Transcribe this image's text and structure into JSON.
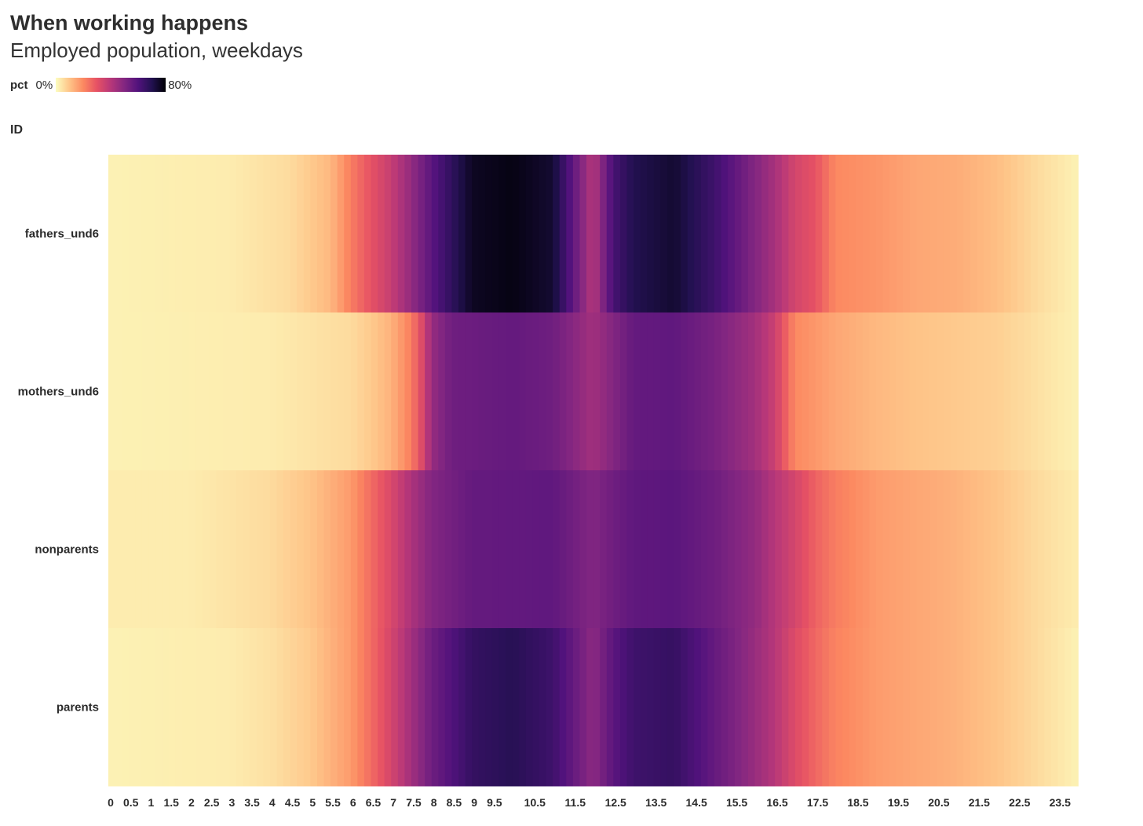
{
  "header": {
    "title": "When working happens",
    "subtitle": "Employed population, weekdays"
  },
  "legend": {
    "title": "pct",
    "min_label": "0%",
    "max_label": "80%",
    "colors": [
      "#fcfdbf",
      "#fec488",
      "#fc8961",
      "#e65164",
      "#b73779",
      "#822681",
      "#51127c",
      "#221150",
      "#000004"
    ]
  },
  "y_axis": {
    "title": "ID"
  },
  "chart_data": {
    "type": "heatmap",
    "title": "When working happens",
    "subtitle": "Employed population, weekdays",
    "xlabel": "",
    "ylabel": "ID",
    "value_label": "pct",
    "value_range": [
      0,
      80
    ],
    "value_unit": "%",
    "colorscale": "magma (reversed: low = light yellow, high = black)",
    "x_range": [
      0,
      24
    ],
    "x_step": 0.1667,
    "x_tick_labels": [
      "0",
      "0.5",
      "1",
      "1.5",
      "2",
      "2.5",
      "3",
      "3.5",
      "4",
      "4.5",
      "5",
      "5.5",
      "6",
      "6.5",
      "7",
      "7.5",
      "8",
      "8.5",
      "9",
      "9.5",
      "10.5",
      "11.5",
      "12.5",
      "13.5",
      "14.5",
      "15.5",
      "16.5",
      "17.5",
      "18.5",
      "19.5",
      "20.5",
      "21.5",
      "22.5",
      "23.5"
    ],
    "x_tick_values": [
      0,
      0.5,
      1,
      1.5,
      2,
      2.5,
      3,
      3.5,
      4,
      4.5,
      5,
      5.5,
      6,
      6.5,
      7,
      7.5,
      8,
      8.5,
      9,
      9.5,
      10.5,
      11.5,
      12.5,
      13.5,
      14.5,
      15.5,
      16.5,
      17.5,
      18.5,
      19.5,
      20.5,
      21.5,
      22.5,
      23.5
    ],
    "rows": [
      "fathers_und6",
      "mothers_und6",
      "nonparents",
      "parents"
    ],
    "series": [
      {
        "name": "fathers_und6",
        "points": [
          [
            0,
            2
          ],
          [
            3,
            3
          ],
          [
            4.5,
            6
          ],
          [
            5.5,
            12
          ],
          [
            6,
            22
          ],
          [
            6.5,
            30
          ],
          [
            7,
            37
          ],
          [
            7.5,
            47
          ],
          [
            8,
            58
          ],
          [
            8.5,
            67
          ],
          [
            9,
            76
          ],
          [
            10,
            78
          ],
          [
            11,
            74
          ],
          [
            12,
            40
          ],
          [
            12.5,
            62
          ],
          [
            13,
            70
          ],
          [
            14,
            74
          ],
          [
            15,
            64
          ],
          [
            16,
            50
          ],
          [
            16.5,
            43
          ],
          [
            17,
            34
          ],
          [
            17.5,
            30
          ],
          [
            18,
            20
          ],
          [
            19,
            18
          ],
          [
            20,
            15
          ],
          [
            21,
            14
          ],
          [
            22,
            11
          ],
          [
            23,
            6
          ],
          [
            24,
            2
          ]
        ]
      },
      {
        "name": "mothers_und6",
        "points": [
          [
            0,
            2
          ],
          [
            4,
            3
          ],
          [
            6,
            6
          ],
          [
            6.5,
            9
          ],
          [
            7,
            13
          ],
          [
            7.5,
            22
          ],
          [
            7.8,
            34
          ],
          [
            8,
            46
          ],
          [
            8.5,
            54
          ],
          [
            10,
            56
          ],
          [
            11,
            54
          ],
          [
            12,
            44
          ],
          [
            12.5,
            50
          ],
          [
            13,
            56
          ],
          [
            14,
            57
          ],
          [
            15,
            52
          ],
          [
            16,
            44
          ],
          [
            16.5,
            36
          ],
          [
            17,
            20
          ],
          [
            18,
            15
          ],
          [
            19,
            12
          ],
          [
            20,
            10
          ],
          [
            22,
            8
          ],
          [
            23,
            5
          ],
          [
            24,
            2
          ]
        ]
      },
      {
        "name": "nonparents",
        "points": [
          [
            0,
            3
          ],
          [
            2,
            3
          ],
          [
            4,
            6
          ],
          [
            5,
            10
          ],
          [
            6,
            17
          ],
          [
            6.5,
            25
          ],
          [
            7,
            33
          ],
          [
            7.5,
            42
          ],
          [
            8,
            50
          ],
          [
            9,
            56
          ],
          [
            11,
            57
          ],
          [
            12,
            50
          ],
          [
            12.5,
            54
          ],
          [
            13,
            57
          ],
          [
            14,
            58
          ],
          [
            15,
            54
          ],
          [
            16,
            47
          ],
          [
            16.5,
            40
          ],
          [
            17,
            34
          ],
          [
            17.5,
            27
          ],
          [
            18,
            22
          ],
          [
            19,
            17
          ],
          [
            20,
            15
          ],
          [
            21,
            13
          ],
          [
            22,
            10
          ],
          [
            23,
            6
          ],
          [
            24,
            3
          ]
        ]
      },
      {
        "name": "parents",
        "points": [
          [
            0,
            2
          ],
          [
            3,
            3
          ],
          [
            4,
            5
          ],
          [
            5,
            9
          ],
          [
            6,
            17
          ],
          [
            6.5,
            25
          ],
          [
            7,
            34
          ],
          [
            7.5,
            44
          ],
          [
            8,
            54
          ],
          [
            9,
            66
          ],
          [
            10,
            69
          ],
          [
            11,
            64
          ],
          [
            12,
            48
          ],
          [
            12.5,
            58
          ],
          [
            13,
            64
          ],
          [
            14,
            66
          ],
          [
            15,
            56
          ],
          [
            16,
            46
          ],
          [
            16.5,
            40
          ],
          [
            17,
            32
          ],
          [
            17.5,
            26
          ],
          [
            18,
            21
          ],
          [
            19,
            17
          ],
          [
            20,
            15
          ],
          [
            21,
            13
          ],
          [
            22,
            10
          ],
          [
            23,
            6
          ],
          [
            24,
            2
          ]
        ]
      }
    ]
  }
}
